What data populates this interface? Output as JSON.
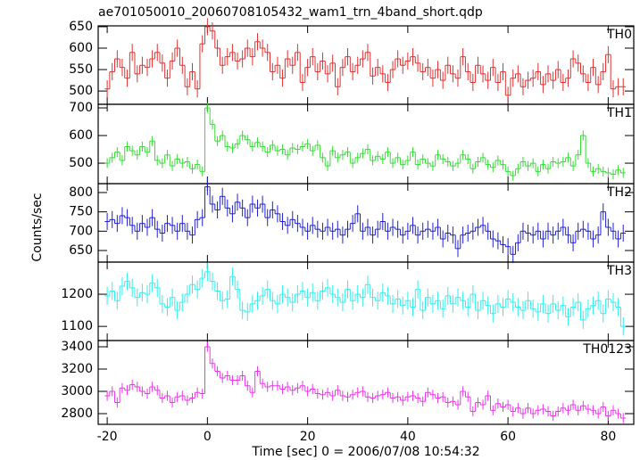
{
  "chart_data": {
    "type": "step",
    "title": "ae701050010_20060708105432_wam1_trn_4band_short.qdp",
    "xlabel": "Time [sec] 0 = 2006/07/08 10:54:32",
    "ylabel": "Counts/sec",
    "xlim": [
      -21.8,
      85.1
    ],
    "xticks": [
      -20,
      0,
      20,
      40,
      60,
      80
    ],
    "bins": [
      -20.5,
      -19.5,
      -18.5,
      -17.5,
      -16.5,
      -15.5,
      -14.5,
      -13.5,
      -12.5,
      -11.5,
      -10.5,
      -9.5,
      -8.5,
      -7.5,
      -6.5,
      -5.5,
      -4.5,
      -3.5,
      -2.5,
      -1.5,
      -0.5,
      0.5,
      1.5,
      2.5,
      3.5,
      4.5,
      5.5,
      6.5,
      7.5,
      8.5,
      9.5,
      10.5,
      11.5,
      12.5,
      13.5,
      14.5,
      15.5,
      16.5,
      17.5,
      18.5,
      19.5,
      20.5,
      21.5,
      22.5,
      23.5,
      24.5,
      25.5,
      26.5,
      27.5,
      28.5,
      29.5,
      30.5,
      31.5,
      32.5,
      33.5,
      34.5,
      35.5,
      36.5,
      37.5,
      38.5,
      39.5,
      40.5,
      41.5,
      42.5,
      43.5,
      44.5,
      45.5,
      46.5,
      47.5,
      48.5,
      49.5,
      50.5,
      51.5,
      52.5,
      53.5,
      54.5,
      55.5,
      56.5,
      57.5,
      58.5,
      59.5,
      60.5,
      61.5,
      62.5,
      63.5,
      64.5,
      65.5,
      66.5,
      67.5,
      68.5,
      69.5,
      70.5,
      71.5,
      72.5,
      73.5,
      74.5,
      75.5,
      76.5,
      77.5,
      78.5,
      79.5,
      80.5,
      81.5,
      82.5,
      83.5
    ],
    "panels": [
      {
        "name": "TH0",
        "color": "#e03030",
        "ylim": [
          469,
          652
        ],
        "yticks": [
          500,
          550,
          600,
          650
        ],
        "error": 20,
        "values": [
          505,
          545,
          575,
          555,
          530,
          590,
          540,
          560,
          555,
          575,
          590,
          565,
          530,
          570,
          600,
          560,
          510,
          545,
          505,
          610,
          650,
          640,
          600,
          560,
          580,
          590,
          570,
          575,
          600,
          580,
          615,
          600,
          590,
          545,
          560,
          530,
          575,
          560,
          590,
          520,
          555,
          580,
          545,
          570,
          540,
          565,
          510,
          555,
          580,
          545,
          560,
          575,
          590,
          535,
          555,
          540,
          520,
          550,
          575,
          560,
          570,
          580,
          565,
          545,
          555,
          530,
          550,
          525,
          560,
          540,
          530,
          580,
          545,
          520,
          560,
          540,
          525,
          555,
          520,
          545,
          490,
          530,
          540,
          510,
          525,
          530,
          545,
          515,
          540,
          525,
          550,
          520,
          530,
          575,
          565,
          540,
          520,
          555,
          515,
          545,
          585,
          505,
          510,
          510
        ]
      },
      {
        "name": "TH1",
        "color": "#33dd33",
        "ylim": [
          426,
          713
        ],
        "yticks": [
          500,
          600,
          700
        ],
        "error": 18,
        "values": [
          500,
          520,
          540,
          510,
          560,
          545,
          530,
          560,
          540,
          580,
          510,
          500,
          530,
          490,
          515,
          500,
          505,
          480,
          495,
          470,
          700,
          640,
          580,
          600,
          560,
          555,
          570,
          600,
          585,
          560,
          575,
          560,
          540,
          565,
          545,
          550,
          530,
          555,
          550,
          560,
          570,
          545,
          565,
          520,
          490,
          545,
          520,
          530,
          540,
          500,
          520,
          535,
          550,
          510,
          525,
          515,
          540,
          500,
          520,
          495,
          510,
          540,
          495,
          515,
          500,
          490,
          530,
          515,
          505,
          490,
          500,
          530,
          515,
          480,
          505,
          520,
          495,
          485,
          510,
          495,
          470,
          455,
          480,
          505,
          490,
          500,
          470,
          495,
          480,
          505,
          500,
          505,
          520,
          490,
          530,
          600,
          500,
          470,
          480,
          470,
          465,
          460,
          475,
          465
        ]
      },
      {
        "name": "TH2",
        "color": "#2020d0",
        "ylim": [
          620,
          823
        ],
        "yticks": [
          650,
          700,
          750,
          800
        ],
        "error": 22,
        "values": [
          725,
          730,
          720,
          740,
          735,
          715,
          700,
          720,
          710,
          735,
          705,
          695,
          720,
          715,
          700,
          720,
          700,
          690,
          730,
          735,
          815,
          770,
          755,
          790,
          760,
          745,
          775,
          760,
          735,
          770,
          760,
          770,
          735,
          755,
          745,
          725,
          715,
          730,
          720,
          710,
          700,
          715,
          705,
          700,
          710,
          700,
          705,
          690,
          705,
          720,
          745,
          700,
          710,
          690,
          705,
          725,
          700,
          710,
          705,
          690,
          700,
          715,
          690,
          700,
          705,
          700,
          710,
          680,
          695,
          690,
          655,
          690,
          695,
          700,
          710,
          715,
          700,
          680,
          675,
          665,
          660,
          640,
          670,
          700,
          695,
          690,
          700,
          680,
          700,
          690,
          700,
          710,
          690,
          670,
          700,
          705,
          700,
          680,
          690,
          750,
          710,
          700,
          680,
          695
        ]
      },
      {
        "name": "TH3",
        "color": "#33eeee",
        "ylim": [
          1056,
          1300
        ],
        "yticks": [
          1100,
          1200
        ],
        "error": 28,
        "values": [
          1195,
          1210,
          1180,
          1225,
          1240,
          1220,
          1190,
          1205,
          1200,
          1235,
          1220,
          1170,
          1160,
          1190,
          1150,
          1175,
          1200,
          1230,
          1215,
          1250,
          1270,
          1240,
          1210,
          1180,
          1185,
          1255,
          1215,
          1150,
          1145,
          1170,
          1180,
          1195,
          1215,
          1180,
          1170,
          1200,
          1190,
          1175,
          1200,
          1210,
          1190,
          1205,
          1180,
          1210,
          1220,
          1200,
          1190,
          1175,
          1215,
          1180,
          1200,
          1190,
          1230,
          1190,
          1180,
          1205,
          1195,
          1170,
          1185,
          1165,
          1180,
          1160,
          1215,
          1150,
          1190,
          1170,
          1180,
          1155,
          1195,
          1170,
          1190,
          1180,
          1160,
          1200,
          1150,
          1180,
          1165,
          1140,
          1170,
          1160,
          1185,
          1175,
          1160,
          1150,
          1180,
          1155,
          1145,
          1170,
          1140,
          1170,
          1150,
          1165,
          1130,
          1160,
          1175,
          1120,
          1155,
          1165,
          1180,
          1140,
          1185,
          1175,
          1160,
          1100
        ]
      },
      {
        "name": "TH0123",
        "color": "#ee33ee",
        "ylim": [
          2704,
          3456
        ],
        "yticks": [
          2800,
          3000,
          3200,
          3400
        ],
        "error": 45,
        "values": [
          2960,
          3000,
          2900,
          3030,
          3010,
          3060,
          3040,
          3000,
          2980,
          3040,
          3010,
          2940,
          2960,
          2900,
          2950,
          2960,
          2920,
          2940,
          2990,
          2980,
          3400,
          3250,
          3180,
          3120,
          3140,
          3100,
          3100,
          3140,
          3050,
          2990,
          3180,
          3070,
          3040,
          3050,
          3050,
          3020,
          3040,
          3010,
          3030,
          3050,
          3000,
          3020,
          2980,
          2970,
          2990,
          2960,
          3010,
          2960,
          2950,
          2970,
          2990,
          3000,
          2950,
          2940,
          2960,
          2970,
          2990,
          2940,
          2950,
          2920,
          2950,
          2960,
          2940,
          2910,
          2990,
          2970,
          2940,
          2950,
          2900,
          2910,
          2880,
          3000,
          2950,
          2820,
          2900,
          2880,
          2960,
          2830,
          2890,
          2860,
          2880,
          2820,
          2850,
          2800,
          2850,
          2800,
          2830,
          2840,
          2820,
          2780,
          2820,
          2850,
          2830,
          2880,
          2830,
          2870,
          2840,
          2830,
          2800,
          2860,
          2780,
          2830,
          2800,
          2760
        ]
      }
    ]
  }
}
